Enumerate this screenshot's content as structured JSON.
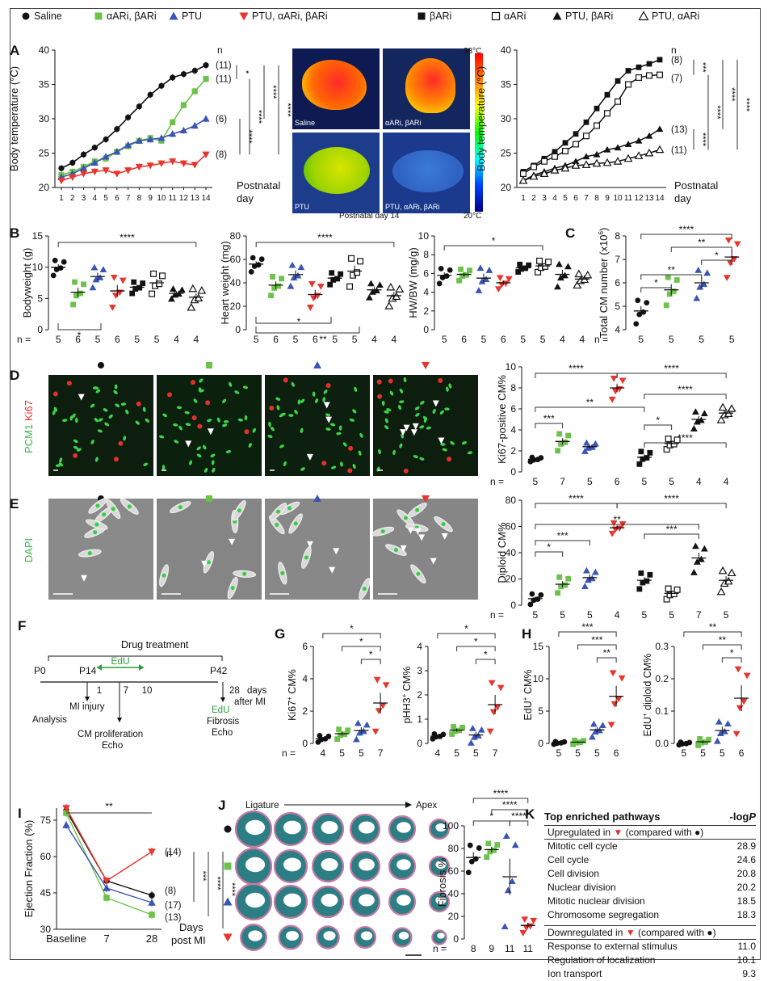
{
  "legend": {
    "left": [
      {
        "name": "Saline",
        "marker": "circle-filled",
        "color": "#111111"
      },
      {
        "name": "αARi, βARi",
        "marker": "square-filled",
        "color": "#6cc24a"
      },
      {
        "name": "PTU",
        "marker": "triangle-up-filled",
        "color": "#3a55b4"
      },
      {
        "name": "PTU, αARi, βARi",
        "marker": "triangle-down-filled",
        "color": "#e8352e"
      }
    ],
    "right": [
      {
        "name": "βARi",
        "marker": "square-filled",
        "color": "#111111"
      },
      {
        "name": "αARi",
        "marker": "square-open",
        "color": "#111111"
      },
      {
        "name": "PTU, βARi",
        "marker": "triangle-up-filled",
        "color": "#111111"
      },
      {
        "name": "PTU, αARi",
        "marker": "triangle-up-open",
        "color": "#111111"
      }
    ]
  },
  "panels": {
    "A": "A",
    "B": "B",
    "C": "C",
    "D": "D",
    "E": "E",
    "F": "F",
    "G": "G",
    "H": "H",
    "I": "I",
    "J": "J",
    "K": "K"
  },
  "panelA": {
    "ylabel": "Body temperature (°C)",
    "xlabel1": "Postnatal",
    "xlabel2": "day",
    "n_label": "n",
    "yticks": [
      "20",
      "25",
      "30",
      "35",
      "40"
    ],
    "xticks": [
      "1",
      "2",
      "3",
      "4",
      "5",
      "6",
      "7",
      "8",
      "9",
      "10",
      "11",
      "12",
      "13",
      "14"
    ],
    "left_n": [
      "(11)",
      "(11)",
      "(6)",
      "(8)"
    ],
    "right_n": [
      "(8)",
      "(7)",
      "(13)",
      "(11)"
    ],
    "left_sig": [
      "*",
      "****",
      "****",
      "****",
      "****"
    ],
    "right_sig": [
      "***",
      "****",
      "****",
      "****",
      "****"
    ]
  },
  "chart_data": [
    {
      "type": "line",
      "title": "Panel A left: body temperature",
      "xlabel": "Postnatal day",
      "ylabel": "Body temperature (°C)",
      "ylim": [
        20,
        40
      ],
      "x": [
        1,
        2,
        3,
        4,
        5,
        6,
        7,
        8,
        9,
        10,
        11,
        12,
        13,
        14
      ],
      "series": [
        {
          "name": "Saline",
          "values": [
            22.8,
            23.6,
            24.8,
            25.8,
            27.0,
            28.5,
            30.2,
            31.8,
            33.5,
            34.8,
            36.0,
            36.5,
            37.0,
            37.8
          ]
        },
        {
          "name": "αARi, βARi",
          "values": [
            21.8,
            22.3,
            23.0,
            23.8,
            24.2,
            25.2,
            26.0,
            26.8,
            27.2,
            26.8,
            29.5,
            32.0,
            34.0,
            35.8
          ]
        },
        {
          "name": "PTU",
          "values": [
            21.5,
            22.0,
            22.8,
            23.6,
            24.5,
            25.2,
            26.2,
            26.8,
            27.0,
            27.2,
            27.8,
            28.3,
            29.0,
            30.0
          ]
        },
        {
          "name": "PTU, αARi, βARi",
          "values": [
            21.0,
            21.5,
            22.0,
            22.3,
            22.5,
            22.0,
            22.5,
            23.0,
            23.2,
            23.5,
            23.8,
            23.5,
            23.3,
            24.8
          ]
        }
      ]
    },
    {
      "type": "line",
      "title": "Panel A right: body temperature",
      "xlabel": "Postnatal day",
      "ylabel": "Body temperature (°C)",
      "ylim": [
        20,
        40
      ],
      "x": [
        1,
        2,
        3,
        4,
        5,
        6,
        7,
        8,
        9,
        10,
        11,
        12,
        13,
        14
      ],
      "series": [
        {
          "name": "βARi",
          "values": [
            22.3,
            23.2,
            24.2,
            25.2,
            26.5,
            27.8,
            29.5,
            31.5,
            33.5,
            35.5,
            37.0,
            37.5,
            38.0,
            38.6
          ]
        },
        {
          "name": "αARi",
          "values": [
            22.0,
            23.0,
            23.8,
            24.5,
            25.3,
            26.3,
            27.5,
            29.0,
            30.8,
            32.5,
            35.0,
            36.0,
            36.3,
            36.4
          ]
        },
        {
          "name": "PTU, βARi",
          "values": [
            21.0,
            21.8,
            22.3,
            22.8,
            23.2,
            23.8,
            24.5,
            24.8,
            25.5,
            25.8,
            26.3,
            26.8,
            27.5,
            28.5
          ]
        },
        {
          "name": "PTU, αARi",
          "values": [
            21.0,
            21.6,
            22.0,
            22.5,
            22.8,
            23.2,
            23.3,
            23.5,
            23.6,
            23.8,
            24.2,
            24.6,
            25.0,
            25.5
          ]
        }
      ]
    },
    {
      "type": "scatter",
      "title": "Panel B Bodyweight",
      "ylabel": "Bodyweight (g)",
      "ylim": [
        0,
        15
      ],
      "categories": [
        "Saline",
        "αARi, βARi",
        "PTU",
        "PTU, αARi, βARi",
        "βARi",
        "αARi",
        "PTU, βARi",
        "PTU, αARi"
      ],
      "means": [
        10.0,
        6.0,
        8.5,
        6.2,
        6.8,
        7.5,
        5.8,
        5.2
      ]
    },
    {
      "type": "scatter",
      "title": "Panel B Heart weight",
      "ylabel": "Heart weight (mg)",
      "ylim": [
        0,
        80
      ],
      "categories": [
        "Saline",
        "αARi, βARi",
        "PTU",
        "PTU, αARi, βARi",
        "βARi",
        "αARi",
        "PTU, βARi",
        "PTU, αARi"
      ],
      "means": [
        56,
        38,
        47,
        30,
        44,
        50,
        34,
        29
      ]
    },
    {
      "type": "scatter",
      "title": "Panel B HW/BW",
      "ylabel": "HW/BW (mg/g)",
      "ylim": [
        0,
        10
      ],
      "categories": [
        "Saline",
        "αARi, βARi",
        "PTU",
        "PTU, αARi, βARi",
        "βARi",
        "αARi",
        "PTU, βARi",
        "PTU, αARi"
      ],
      "means": [
        5.8,
        5.9,
        5.5,
        5.0,
        6.6,
        6.8,
        5.9,
        5.4
      ]
    },
    {
      "type": "scatter",
      "title": "Panel C Total CM number",
      "ylabel": "Total CM number (x10^6)",
      "ylim": [
        4,
        8
      ],
      "categories": [
        "Saline",
        "αARi, βARi",
        "PTU",
        "PTU, αARi, βARi"
      ],
      "means": [
        4.8,
        5.7,
        6.0,
        7.1
      ]
    },
    {
      "type": "scatter",
      "title": "Panel D Ki67-positive CM%",
      "ylabel": "Ki67-positive CM%",
      "ylim": [
        0,
        10
      ],
      "categories": [
        "Saline",
        "αARi, βARi",
        "PTU",
        "PTU, αARi, βARi",
        "βARi",
        "αARi",
        "PTU, βARi",
        "PTU, αARi"
      ],
      "means": [
        1.2,
        2.9,
        2.4,
        8.0,
        1.4,
        2.7,
        5.0,
        5.6
      ]
    },
    {
      "type": "scatter",
      "title": "Panel E Diploid CM%",
      "ylabel": "Diploid CM%",
      "ylim": [
        0,
        80
      ],
      "categories": [
        "Saline",
        "αARi, βARi",
        "PTU",
        "PTU, αARi, βARi",
        "βARi",
        "αARi",
        "PTU, βARi",
        "PTU, αARi"
      ],
      "means": [
        5,
        16,
        21,
        59,
        19,
        9,
        36,
        19
      ]
    },
    {
      "type": "scatter",
      "title": "Panel G Ki67+ CM%",
      "ylabel": "Ki67+ CM%",
      "ylim": [
        0,
        6
      ],
      "categories": [
        "Saline",
        "αARi, βARi",
        "PTU",
        "PTU, αARi, βARi"
      ],
      "means": [
        0.3,
        0.6,
        0.8,
        2.5
      ]
    },
    {
      "type": "scatter",
      "title": "Panel G pHH3+ CM%",
      "ylabel": "pHH3+ CM%",
      "ylim": [
        0,
        4
      ],
      "categories": [
        "Saline",
        "αARi, βARi",
        "PTU",
        "PTU, αARi, βARi"
      ],
      "means": [
        0.3,
        0.55,
        0.35,
        1.6
      ]
    },
    {
      "type": "scatter",
      "title": "Panel H EdU+ CM%",
      "ylabel": "EdU+ CM%",
      "ylim": [
        0,
        15
      ],
      "categories": [
        "Saline",
        "αARi, βARi",
        "PTU",
        "PTU, αARi, βARi"
      ],
      "means": [
        0.1,
        0.2,
        2.1,
        7.3
      ]
    },
    {
      "type": "scatter",
      "title": "Panel H EdU+ diploid CM%",
      "ylabel": "EdU+ diploid CM%",
      "ylim": [
        0,
        0.3
      ],
      "categories": [
        "Saline",
        "αARi, βARi",
        "PTU",
        "PTU, αARi, βARi"
      ],
      "means": [
        0.0,
        0.005,
        0.04,
        0.14
      ]
    },
    {
      "type": "line",
      "title": "Panel I Ejection Fraction",
      "ylabel": "Ejection Fraction (%)",
      "ylim": [
        30,
        80
      ],
      "categories": [
        "Baseline",
        "7",
        "28"
      ],
      "series": [
        {
          "name": "Saline",
          "values": [
            79,
            50,
            44
          ]
        },
        {
          "name": "αARi, βARi",
          "values": [
            78,
            43,
            36
          ]
        },
        {
          "name": "PTU",
          "values": [
            73,
            47,
            41
          ]
        },
        {
          "name": "PTU, αARi, βARi",
          "values": [
            80,
            50,
            62
          ]
        }
      ]
    },
    {
      "type": "scatter",
      "title": "Panel J Fibrosis %",
      "ylabel": "Fibrosis %",
      "ylim": [
        0,
        100
      ],
      "categories": [
        "Saline",
        "αARi, βARi",
        "PTU",
        "PTU, αARi, βARi"
      ],
      "means": [
        72,
        79,
        55,
        12
      ]
    }
  ],
  "thermal": {
    "tiles": [
      "Saline",
      "αARi, βARi",
      "PTU",
      "PTU, αARi, βARi"
    ],
    "scale_top": "38°C",
    "scale_bottom": "20°C",
    "caption": "Postnatal day 14"
  },
  "panelB": {
    "y1": "Bodyweight (g)",
    "y1ticks": [
      "0",
      "5",
      "10",
      "15"
    ],
    "y2": "Heart weight (mg)",
    "y2ticks": [
      "0",
      "20",
      "40",
      "60",
      "80"
    ],
    "y3": "HW/BW (mg/g)",
    "y3ticks": [
      "0",
      "2",
      "4",
      "6",
      "8",
      "10"
    ],
    "n_prefix": "n =",
    "n": [
      "5",
      "6",
      "5",
      "6",
      "5",
      "5",
      "4",
      "4"
    ],
    "sig1": [
      "****",
      "*"
    ],
    "sig2": [
      "****",
      "*",
      "**"
    ],
    "sig3": [
      "*"
    ]
  },
  "panelC": {
    "ylabel": "Total CM number (x10",
    "ylabel_exp": "6",
    "ylabel_end": ")",
    "yticks": [
      "4",
      "5",
      "6",
      "7",
      "8"
    ],
    "n": [
      "5",
      "5",
      "5",
      "5"
    ],
    "sig": [
      "****",
      "**",
      "**",
      "*",
      "*"
    ]
  },
  "panelD": {
    "stain1": "PCM1",
    "stain2": "Ki67",
    "ylabel": "Ki67-positive CM%",
    "yticks": [
      "0",
      "2",
      "4",
      "6",
      "8",
      "10"
    ],
    "n": [
      "5",
      "7",
      "5",
      "6",
      "5",
      "5",
      "4",
      "4"
    ],
    "sig": [
      "****",
      "****",
      "**",
      "***",
      "****",
      "*",
      "****"
    ]
  },
  "panelE": {
    "stain": "DAPI",
    "ylabel": "Diploid CM%",
    "yticks": [
      "0",
      "20",
      "40",
      "60",
      "80"
    ],
    "n": [
      "5",
      "5",
      "5",
      "4",
      "5",
      "5",
      "7",
      "5"
    ],
    "sig": [
      "****",
      "****",
      "**",
      "***",
      "*",
      "***"
    ]
  },
  "panelF": {
    "title": "Drug treatment",
    "p0": "P0",
    "p14": "P14",
    "p42": "P42",
    "edu": "EdU",
    "d1": "1",
    "d7": "7",
    "d10": "10",
    "d28": "28",
    "days": "days",
    "after": "after MI",
    "mi": "MI injury",
    "analysis": "Analysis",
    "cm1": "CM proliferation",
    "cm2": "Echo",
    "e1": "EdU",
    "e2": "Fibrosis",
    "e3": "Echo"
  },
  "panelG": {
    "y1": "Ki67",
    "y1sup": "+",
    "y1end": " CM%",
    "y1ticks": [
      "0",
      "2",
      "4",
      "6"
    ],
    "y2": "pHH3",
    "y2sup": "+",
    "y2end": " CM%",
    "y2ticks": [
      "0",
      "1",
      "2",
      "3",
      "4"
    ],
    "n": [
      "4",
      "5",
      "5",
      "7"
    ],
    "sig": [
      "*",
      "*",
      "*"
    ]
  },
  "panelH": {
    "y1": "EdU",
    "y1sup": "+",
    "y1end": " CM%",
    "y1ticks": [
      "0",
      "5",
      "10",
      "15"
    ],
    "y2": "EdU",
    "y2sup": "+",
    "y2end": " diploid CM%",
    "y2ticks": [
      "0.0",
      "0.1",
      "0.2",
      "0.3"
    ],
    "n": [
      "5",
      "5",
      "5",
      "6"
    ],
    "sig1": [
      "***",
      "***",
      "**"
    ],
    "sig2": [
      "**",
      "**",
      "*"
    ]
  },
  "panelI": {
    "ylabel": "Ejection Fraction (%)",
    "yticks": [
      "30",
      "45",
      "60",
      "75"
    ],
    "xticks": [
      "Baseline",
      "7",
      "28"
    ],
    "x2": "Days",
    "x3": "post MI",
    "n_label": "n",
    "n": [
      "(14)",
      "(8)",
      "(17)",
      "(13)"
    ],
    "sig": [
      "**",
      "***",
      "****",
      "****"
    ]
  },
  "panelJ": {
    "ligature": "Ligature",
    "apex": "Apex",
    "ylabel": "Fibrosis %",
    "yticks": [
      "0",
      "20",
      "40",
      "60",
      "80",
      "100"
    ],
    "n": [
      "8",
      "9",
      "11",
      "11"
    ],
    "sig": [
      "****",
      "****",
      "*",
      "****"
    ]
  },
  "panelK": {
    "title": "Top enriched pathways",
    "score": "-log",
    "score_p": "P",
    "up_head1": "Upregulated in",
    "up_head2": "(compared with",
    "up": [
      {
        "name": "Mitotic cell cycle",
        "val": "28.9"
      },
      {
        "name": "Cell cycle",
        "val": "24.6"
      },
      {
        "name": "Cell division",
        "val": "20.8"
      },
      {
        "name": "Nuclear division",
        "val": "20.2"
      },
      {
        "name": "Mitotic nuclear division",
        "val": "18.5"
      },
      {
        "name": "Chromosome segregation",
        "val": "18.3"
      }
    ],
    "down_head1": "Downregulated in",
    "down_head2": "(compared with",
    "down": [
      {
        "name": "Response to external stimulus",
        "val": "11.0"
      },
      {
        "name": "Regulation of localization",
        "val": "10.1"
      },
      {
        "name": "Ion transport",
        "val": "9.3"
      }
    ]
  }
}
